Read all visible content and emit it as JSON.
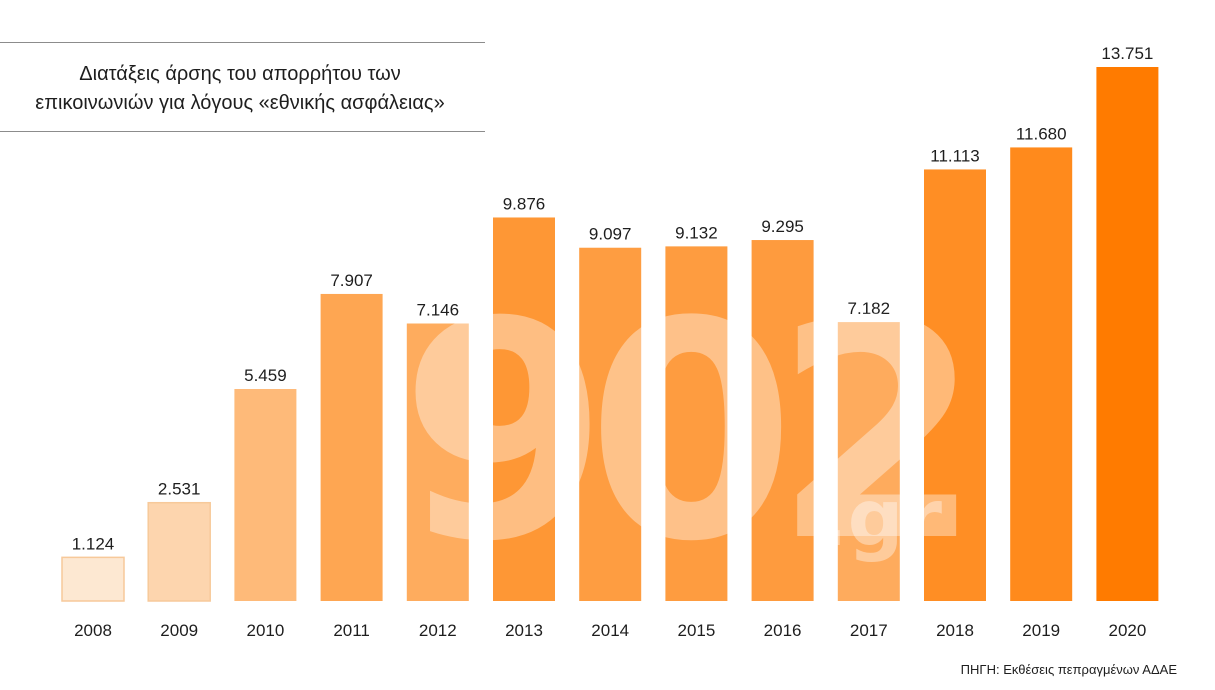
{
  "title": {
    "line1": "Διατάξεις άρσης του απορρήτου των",
    "line2": "επικοινωνιών για λόγους «εθνικής ασφάλειας»"
  },
  "watermark": {
    "main": "902",
    "sub": ".gr"
  },
  "source": "ΠΗΓΗ: Εκθέσεις πεπραγμένων ΑΔΑΕ",
  "chart_data": {
    "type": "bar",
    "categories": [
      "2008",
      "2009",
      "2010",
      "2011",
      "2012",
      "2013",
      "2014",
      "2015",
      "2016",
      "2017",
      "2018",
      "2019",
      "2020"
    ],
    "values": [
      1124,
      2531,
      5459,
      7907,
      7146,
      9876,
      9097,
      9132,
      9295,
      7182,
      11113,
      11680,
      13751
    ],
    "value_labels": [
      "1.124",
      "2.531",
      "5.459",
      "7.907",
      "7.146",
      "9.876",
      "9.097",
      "9.132",
      "9.295",
      "7.182",
      "11.113",
      "11.680",
      "13.751"
    ],
    "title": "Διατάξεις άρσης του απορρήτου των επικοινωνιών για λόγους «εθνικής ασφάλειας»",
    "xlabel": "",
    "ylabel": "",
    "ylim": [
      0,
      13751
    ],
    "grid": false,
    "legend": "none",
    "color_light": "#fde8d2",
    "color_dark": "#ff7b00",
    "border_light": "#f7c99a"
  }
}
